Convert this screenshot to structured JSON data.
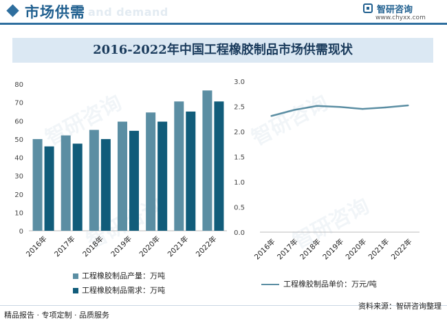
{
  "header": {
    "title": "市场供需",
    "ghost_text": "and demand",
    "brand_name": "智研咨询",
    "brand_url": "www.chyxx.com"
  },
  "banner": {
    "title": "2016-2022年中国工程橡胶制品市场供需现状"
  },
  "watermark": "智研咨询",
  "colors": {
    "production": "#5b8ea3",
    "demand": "#115c7a",
    "price": "#5b8ea3",
    "accent": "#2e6e9e"
  },
  "chart_data": [
    {
      "type": "bar",
      "categories": [
        "2016年",
        "2017年",
        "2018年",
        "2019年",
        "2020年",
        "2021年",
        "2022年"
      ],
      "series": [
        {
          "name": "工程橡胶制品产量：万吨",
          "values": [
            50,
            52,
            55,
            59.5,
            64.5,
            70.5,
            76.5
          ]
        },
        {
          "name": "工程橡胶制品需求：万吨",
          "values": [
            46,
            47.5,
            50,
            54.5,
            59.5,
            65,
            70.5
          ]
        }
      ],
      "ylim": [
        0,
        80
      ],
      "yticks": [
        "0",
        "10",
        "20",
        "30",
        "40",
        "50",
        "60",
        "70",
        "80"
      ],
      "grid": false,
      "legend": "bottom"
    },
    {
      "type": "line",
      "categories": [
        "2016年",
        "2017年",
        "2018年",
        "2019年",
        "2020年",
        "2021年",
        "2022年"
      ],
      "series": [
        {
          "name": "工程橡胶制品单价：万元/吨",
          "values": [
            2.31,
            2.43,
            2.51,
            2.49,
            2.45,
            2.48,
            2.52
          ]
        }
      ],
      "ylim": [
        0,
        3
      ],
      "yticks": [
        "0.0",
        "0.5",
        "1.0",
        "1.5",
        "2.0",
        "2.5",
        "3.0"
      ],
      "grid": false,
      "legend": "bottom"
    }
  ],
  "footer": {
    "left": "精品报告 · 专项定制 · 品质服务",
    "right": "资料来源：智研咨询整理"
  }
}
